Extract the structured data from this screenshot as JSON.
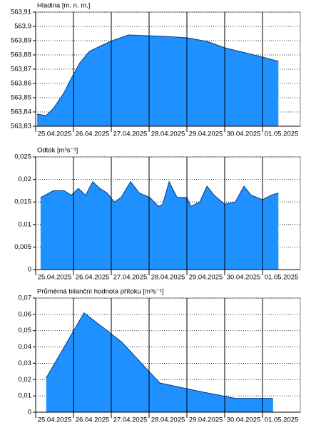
{
  "chart_data": [
    {
      "type": "area",
      "title": "Hladina [m. n. m.]",
      "color": "#1e90ff",
      "x": [
        0.04,
        0.28,
        0.47,
        0.75,
        0.94,
        1.17,
        1.42,
        1.7,
        1.98,
        2.45,
        3.4,
        4.0,
        4.53,
        5.0,
        6.0,
        6.42
      ],
      "values": [
        563.8385,
        563.8375,
        563.8425,
        563.8535,
        563.8635,
        563.8745,
        563.8825,
        563.886,
        563.8895,
        563.894,
        563.893,
        563.892,
        563.8895,
        563.885,
        563.8785,
        563.8755
      ],
      "xlim": [
        0,
        7
      ],
      "ylim": [
        563.83,
        563.91
      ],
      "xticks": [
        {
          "value": 0,
          "label": "25.04.2025"
        },
        {
          "value": 1,
          "label": "26.04.2025"
        },
        {
          "value": 2,
          "label": "27.04.2025"
        },
        {
          "value": 3,
          "label": "28.04.2025"
        },
        {
          "value": 4,
          "label": "29.04.2025"
        },
        {
          "value": 5,
          "label": "30.04.2025"
        },
        {
          "value": 6,
          "label": "01.05.2025"
        }
      ],
      "yticks": [
        {
          "value": 563.83,
          "label": "563,83"
        },
        {
          "value": 563.84,
          "label": "563,84"
        },
        {
          "value": 563.85,
          "label": "563,85"
        },
        {
          "value": 563.86,
          "label": "563,86"
        },
        {
          "value": 563.87,
          "label": "563,87"
        },
        {
          "value": 563.88,
          "label": "563,88"
        },
        {
          "value": 563.89,
          "label": "563,89"
        },
        {
          "value": 563.9,
          "label": "563,9"
        },
        {
          "value": 563.91,
          "label": "563,91"
        }
      ],
      "grid": true
    },
    {
      "type": "area",
      "title": "Odtok [m³s⁻¹]",
      "color": "#1e90ff",
      "x": [
        0.13,
        0.47,
        0.75,
        0.94,
        1.13,
        1.32,
        1.51,
        1.7,
        1.89,
        2.08,
        2.26,
        2.51,
        2.74,
        3.02,
        3.25,
        3.36,
        3.53,
        3.74,
        4.0,
        4.11,
        4.34,
        4.53,
        4.72,
        5.0,
        5.28,
        5.51,
        5.7,
        6.0,
        6.23,
        6.42
      ],
      "values": [
        0.016,
        0.0175,
        0.0175,
        0.0165,
        0.018,
        0.0165,
        0.0195,
        0.018,
        0.017,
        0.015,
        0.016,
        0.0195,
        0.017,
        0.016,
        0.014,
        0.0145,
        0.0195,
        0.016,
        0.016,
        0.014,
        0.015,
        0.0185,
        0.0165,
        0.0145,
        0.015,
        0.0185,
        0.0165,
        0.0155,
        0.0165,
        0.017
      ],
      "xlim": [
        0,
        7
      ],
      "ylim": [
        0,
        0.025
      ],
      "xticks": [
        {
          "value": 0,
          "label": "25.04.2025"
        },
        {
          "value": 1,
          "label": "26.04.2025"
        },
        {
          "value": 2,
          "label": "27.04.2025"
        },
        {
          "value": 3,
          "label": "28.04.2025"
        },
        {
          "value": 4,
          "label": "29.04.2025"
        },
        {
          "value": 5,
          "label": "30.04.2025"
        },
        {
          "value": 6,
          "label": "01.05.2025"
        }
      ],
      "yticks": [
        0,
        {
          "value": 0.005,
          "label": "0,005"
        },
        {
          "value": 0.01,
          "label": "0,01"
        },
        {
          "value": 0.015,
          "label": "0,015"
        },
        {
          "value": 0.02,
          "label": "0,02"
        },
        {
          "value": 0.025,
          "label": "0,025"
        }
      ],
      "grid": true
    },
    {
      "type": "area",
      "title": "Průměrná bilanční hodnota přítoku   [m³s⁻¹]",
      "color": "#1e90ff",
      "x": [
        0.28,
        1.28,
        2.28,
        3.28,
        4.28,
        5.28,
        6.28
      ],
      "values": [
        0.021,
        0.061,
        0.043,
        0.018,
        0.013,
        0.0085,
        0.0085
      ],
      "xlim": [
        0,
        7
      ],
      "ylim": [
        0,
        0.07
      ],
      "xticks": [
        {
          "value": 0,
          "label": "25.04.2025"
        },
        {
          "value": 1,
          "label": "26.04.2025"
        },
        {
          "value": 2,
          "label": "27.04.2025"
        },
        {
          "value": 3,
          "label": "28.04.2025"
        },
        {
          "value": 4,
          "label": "29.04.2025"
        },
        {
          "value": 5,
          "label": "30.04.2025"
        },
        {
          "value": 6,
          "label": "01.05.2025"
        }
      ],
      "yticks": [
        0,
        {
          "value": 0.01,
          "label": "0,01"
        },
        {
          "value": 0.02,
          "label": "0,02"
        },
        {
          "value": 0.03,
          "label": "0,03"
        },
        {
          "value": 0.04,
          "label": "0,04"
        },
        {
          "value": 0.05,
          "label": "0,05"
        },
        {
          "value": 0.06,
          "label": "0,06"
        },
        {
          "value": 0.07,
          "label": "0,07"
        }
      ],
      "grid": true
    }
  ]
}
